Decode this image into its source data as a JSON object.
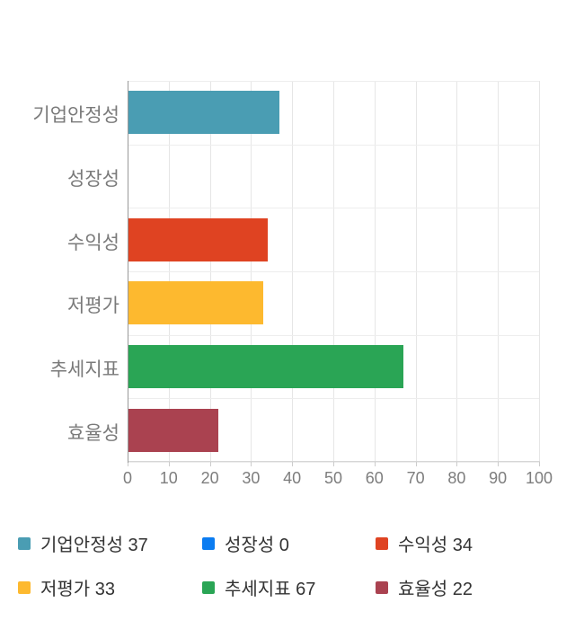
{
  "chart_data": {
    "type": "bar",
    "orientation": "horizontal",
    "title": "",
    "xlabel": "",
    "ylabel": "",
    "categories": [
      "기업안정성",
      "성장성",
      "수익성",
      "저평가",
      "추세지표",
      "효율성"
    ],
    "values": [
      37,
      0,
      34,
      33,
      67,
      22
    ],
    "colors": [
      "#4A9DB3",
      "#0B7CF1",
      "#DF4322",
      "#FDB92F",
      "#2AA555",
      "#AA4250"
    ],
    "xlim": [
      0,
      100
    ],
    "x_ticks": [
      0,
      10,
      20,
      30,
      40,
      50,
      60,
      70,
      80,
      90,
      100
    ],
    "grid": true,
    "legend_position": "bottom",
    "legend": [
      {
        "label": "기업안정성",
        "value": 37,
        "color": "#4A9DB3"
      },
      {
        "label": "성장성",
        "value": 0,
        "color": "#0B7CF1"
      },
      {
        "label": "수익성",
        "value": 34,
        "color": "#DF4322"
      },
      {
        "label": "저평가",
        "value": 33,
        "color": "#FDB92F"
      },
      {
        "label": "추세지표",
        "value": 67,
        "color": "#2AA555"
      },
      {
        "label": "효율성",
        "value": 22,
        "color": "#AA4250"
      }
    ],
    "colors_meta": {
      "gridline": "#e6e6e6",
      "axis_line": "#999999",
      "tick": "#cccccc",
      "y_label_text": "#7a7a7a",
      "x_label_text": "#7d7d7d",
      "legend_text": "#333333",
      "background": "#ffffff"
    }
  }
}
